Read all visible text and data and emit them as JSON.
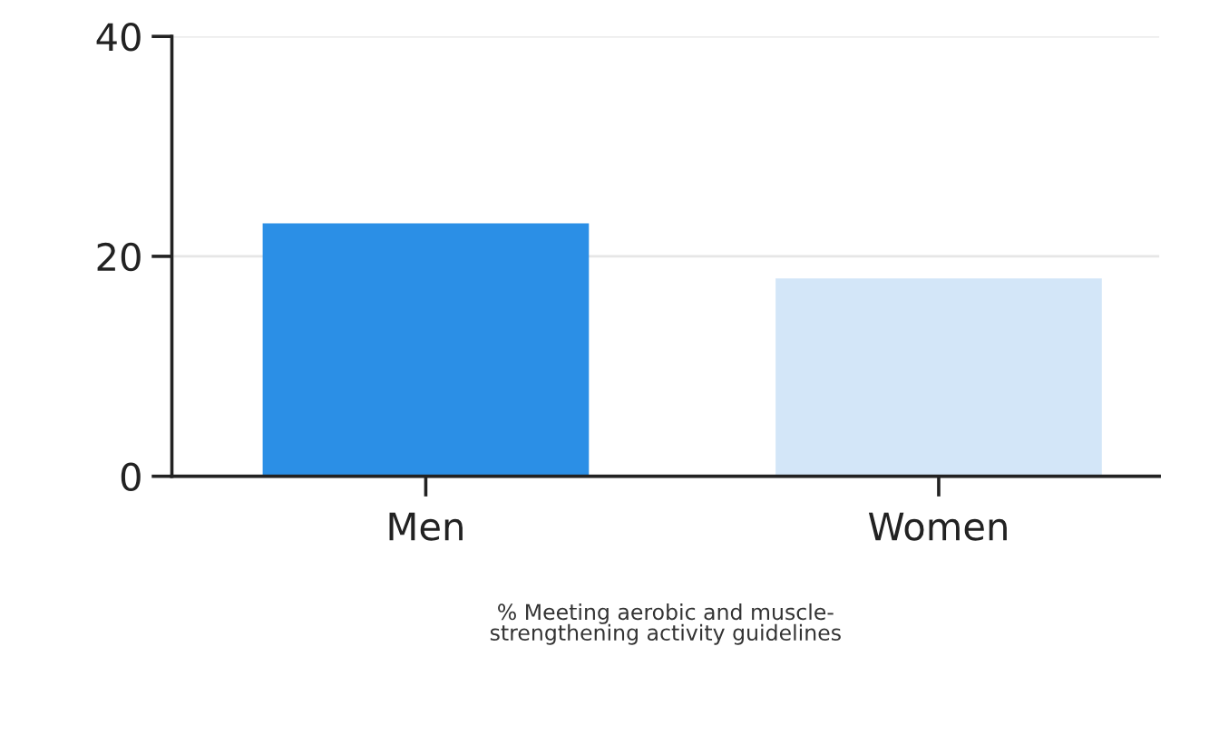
{
  "chart_data": {
    "type": "bar",
    "categories": [
      "Men",
      "Women"
    ],
    "values": [
      23,
      18
    ],
    "colors": [
      "#2b8fe6",
      "#d3e6f8"
    ],
    "xlabel": "% Meeting aerobic and muscle-\nstrengthening activity guidelines",
    "ylim": [
      0,
      40
    ],
    "yticks": [
      0,
      20,
      40
    ],
    "grid": "y"
  }
}
